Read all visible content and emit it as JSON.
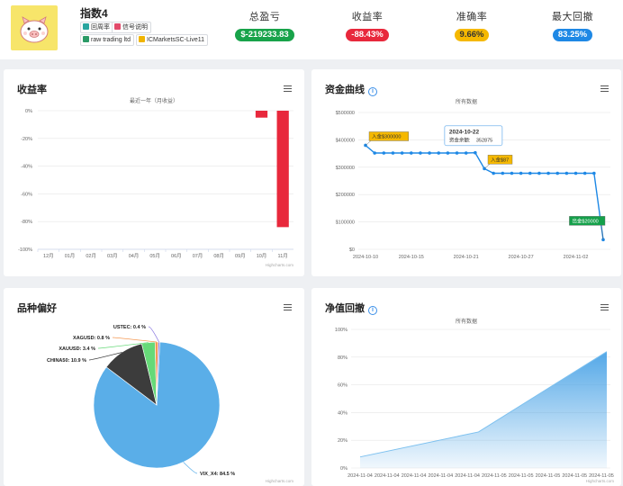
{
  "header": {
    "name": "指数4",
    "tags": [
      {
        "label": "回周率",
        "color": "#2aa6a0"
      },
      {
        "label": "信号说明",
        "color": "#e24a6a"
      },
      {
        "label": "raw trading ltd",
        "color": "#2a9a66"
      },
      {
        "label": "ICMarketsSC-Live11",
        "color": "#f0b400"
      }
    ],
    "stats": [
      {
        "label": "总盈亏",
        "value": "$-219233.83",
        "color": "#18a34a"
      },
      {
        "label": "收益率",
        "value": "-88.43%",
        "color": "#e8283c"
      },
      {
        "label": "准确率",
        "value": "9.66%",
        "color": "#f5b800"
      },
      {
        "label": "最大回撤",
        "value": "83.25%",
        "color": "#1e88e5"
      }
    ]
  },
  "panels": {
    "returns": {
      "title": "收益率",
      "subtitle": "最近一年（月收益）"
    },
    "equity": {
      "title": "资金曲线",
      "subtitle": "所有数据"
    },
    "pie": {
      "title": "品种偏好"
    },
    "drawdown": {
      "title": "净值回撤",
      "subtitle": "所有数据"
    }
  },
  "credit": "Highcharts.com",
  "chart_data": [
    {
      "type": "bar",
      "title": "收益率",
      "subtitle": "最近一年（月收益）",
      "categories": [
        "12月",
        "01月",
        "02月",
        "03月",
        "04月",
        "05月",
        "06月",
        "07月",
        "08月",
        "09月",
        "10月",
        "11月"
      ],
      "values": [
        0,
        0,
        0,
        0,
        0,
        0,
        0,
        0,
        0,
        0,
        -5,
        -84
      ],
      "yticks": [
        "0%",
        "-20%",
        "-40%",
        "-60%",
        "-80%",
        "-100%"
      ],
      "ylim": [
        -100,
        0
      ],
      "color": "#e8283c"
    },
    {
      "type": "line",
      "title": "资金曲线",
      "subtitle": "所有数据",
      "x": [
        "2024-10-10",
        "2024-10-11",
        "2024-10-12",
        "2024-10-13",
        "2024-10-14",
        "2024-10-15",
        "2024-10-16",
        "2024-10-17",
        "2024-10-18",
        "2024-10-19",
        "2024-10-20",
        "2024-10-21",
        "2024-10-22",
        "2024-10-23",
        "2024-10-24",
        "2024-10-25",
        "2024-10-26",
        "2024-10-27",
        "2024-10-28",
        "2024-10-29",
        "2024-10-30",
        "2024-10-31",
        "2024-11-01",
        "2024-11-02",
        "2024-11-03",
        "2024-11-04",
        "2024-11-05"
      ],
      "values": [
        380000,
        352000,
        352000,
        352000,
        352000,
        352000,
        352000,
        352000,
        352000,
        352000,
        352000,
        352000,
        352875,
        295000,
        278000,
        278000,
        278000,
        278000,
        278000,
        278000,
        278000,
        278000,
        278000,
        278000,
        278000,
        278000,
        35000
      ],
      "xticks": [
        "2024-10-10",
        "2024-10-15",
        "2024-10-21",
        "2024-10-27",
        "2024-11-02"
      ],
      "yticks": [
        "$0",
        "$100000",
        "$200000",
        "$300000",
        "$400000",
        "$500000"
      ],
      "ylim": [
        0,
        500000
      ],
      "color": "#1e88e5",
      "annotations": [
        {
          "label": "入金$300000",
          "index": 0
        },
        {
          "label": "入金$87",
          "index": 13
        },
        {
          "label": "出金$20000",
          "index": 26
        }
      ],
      "tooltip": {
        "date": "2024-10-22",
        "label": "资金余额:",
        "value": "352875",
        "index": 12
      }
    },
    {
      "type": "pie",
      "title": "品种偏好",
      "slices": [
        {
          "name": "VIX_X4",
          "value": 84.5,
          "label": "VIX_X4: 84.5 %",
          "color": "#5aaee8"
        },
        {
          "name": "CHINA50",
          "value": 10.9,
          "label": "CHINA50: 10.9 %",
          "color": "#3c3c3c"
        },
        {
          "name": "XAUUSD",
          "value": 3.4,
          "label": "XAUUSD: 3.4 %",
          "color": "#66d978"
        },
        {
          "name": "XAGUSD",
          "value": 0.8,
          "label": "XAGUSD: 0.8 %",
          "color": "#f59a55"
        },
        {
          "name": "USTEC",
          "value": 0.4,
          "label": "USTEC: 0.4 %",
          "color": "#8a78e0"
        }
      ]
    },
    {
      "type": "area",
      "title": "净值回撤",
      "subtitle": "所有数据",
      "xticks": [
        "2024-11-04",
        "2024-11-04",
        "2024-11-04",
        "2024-11-04",
        "2024-11-04",
        "2024-11-05",
        "2024-11-05",
        "2024-11-05",
        "2024-11-05",
        "2024-11-05"
      ],
      "yticks": [
        "0%",
        "20%",
        "40%",
        "60%",
        "80%",
        "100%"
      ],
      "ylim": [
        0,
        100
      ],
      "points": [
        [
          0,
          8
        ],
        [
          0.48,
          26
        ],
        [
          1,
          84
        ]
      ],
      "color": "#4aa3e6"
    }
  ]
}
